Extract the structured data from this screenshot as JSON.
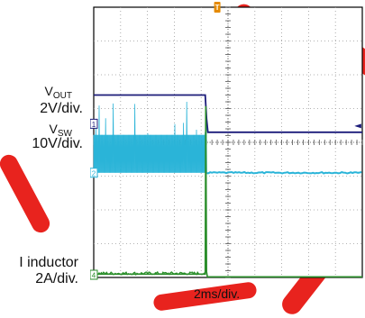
{
  "chart_data": {
    "type": "line",
    "time_scale": "2ms/div.",
    "divisions": {
      "x": 10,
      "y": 8
    },
    "trigger_marker": "T",
    "right_edge_marker": "◄",
    "colors": {
      "grid": "#9a9a9a",
      "background": "#ffffff",
      "vout": "#1c1c7a",
      "vsw": "#2ab4d8",
      "il": "#2b8e2b",
      "trigger": "#e58a00",
      "watermark": "#e8231e"
    },
    "series": [
      {
        "key": "vout",
        "channel": "1",
        "label_main": "V",
        "label_sub": "OUT",
        "scale": "2V/div.",
        "offset_div": 0.9,
        "x_divs": [
          0.0,
          4.15,
          4.2,
          4.25,
          10.0
        ],
        "y_divs": [
          5.0,
          5.0,
          4.3,
          3.9,
          3.9
        ],
        "noise_after_div": 0.01
      },
      {
        "key": "vsw",
        "channel": "2",
        "label_main": "V",
        "label_sub": "SW",
        "scale": "10V/div.",
        "offset_div": 0.0,
        "high_div": 1.6,
        "spike_max_div": 2.7,
        "active_until_div": 4.2,
        "x_divs": [
          0.0,
          10.0
        ],
        "y_divs": [
          0.0,
          0.0
        ]
      },
      {
        "key": "il",
        "channel": "4",
        "label_main": "I inductor",
        "label_sub": "",
        "scale": "2A/div.",
        "offset_div": 0.0,
        "x_divs": [
          0.0,
          4.15,
          4.17,
          4.2,
          4.23,
          10.0
        ],
        "y_divs": [
          0.08,
          0.08,
          5.05,
          0.15,
          0.0,
          0.0
        ]
      }
    ]
  }
}
